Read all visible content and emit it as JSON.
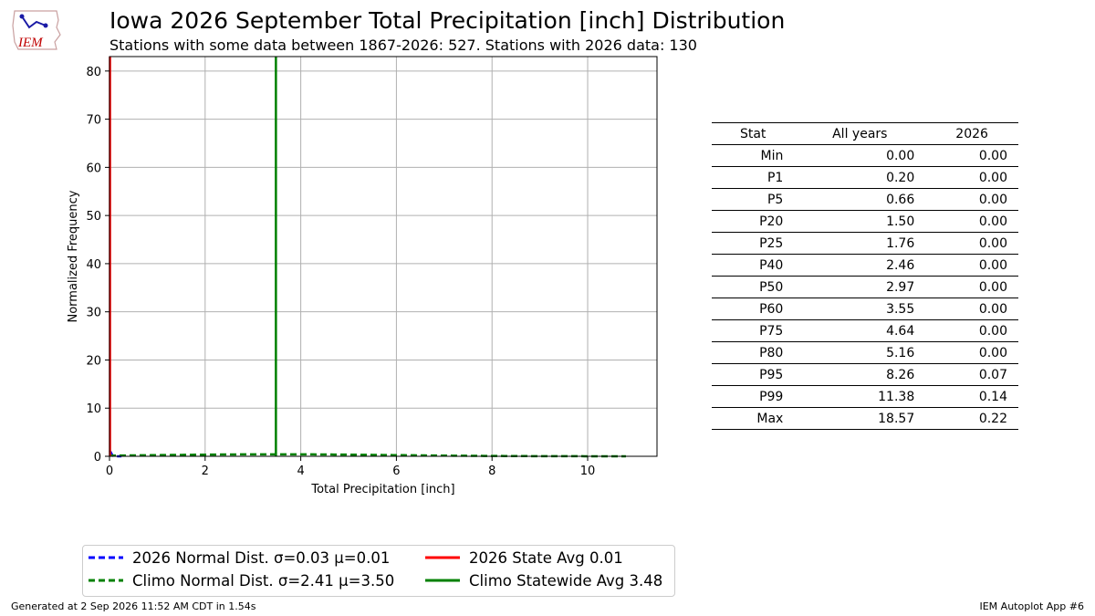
{
  "header": {
    "logo_text": "IEM",
    "title": "Iowa 2026 September Total Precipitation [inch] Distribution",
    "subtitle": "Stations with some data between 1867-2026: 527. Stations with 2026 data: 130"
  },
  "chart_data": {
    "type": "line",
    "xlabel": "Total Precipitation [inch]",
    "ylabel": "Normalized Frequency",
    "xlim": [
      0,
      11.45
    ],
    "ylim": [
      0,
      83
    ],
    "xticks": [
      0,
      2,
      4,
      6,
      8,
      10
    ],
    "yticks": [
      0,
      10,
      20,
      30,
      40,
      50,
      60,
      70,
      80
    ],
    "grid": true,
    "legend_position": "bottom",
    "series": [
      {
        "name": "2026 Normal Dist. σ=0.03 μ=0.01",
        "kind": "normal-pdf",
        "sigma": 0.03,
        "mu": 0.01,
        "scale": 0.075,
        "x_start": 0.0,
        "x_end": 0.25,
        "color": "#0000ff",
        "style": "dashed"
      },
      {
        "name": "Climo Normal Dist. σ=2.41 μ=3.50",
        "kind": "normal-pdf",
        "sigma": 2.41,
        "mu": 3.5,
        "scale": 2.5,
        "x_start": 0.0,
        "x_end": 10.8,
        "color": "#008000",
        "style": "dashed"
      },
      {
        "name": "2026 State Avg 0.01",
        "kind": "vline",
        "x": 0.01,
        "color": "#ff0000",
        "style": "solid"
      },
      {
        "name": "Climo Statewide Avg 3.48",
        "kind": "vline",
        "x": 3.48,
        "color": "#008000",
        "style": "solid"
      }
    ]
  },
  "stats_table": {
    "headers": [
      "Stat",
      "All years",
      "2026"
    ],
    "rows": [
      [
        "Min",
        "0.00",
        "0.00"
      ],
      [
        "P1",
        "0.20",
        "0.00"
      ],
      [
        "P5",
        "0.66",
        "0.00"
      ],
      [
        "P20",
        "1.50",
        "0.00"
      ],
      [
        "P25",
        "1.76",
        "0.00"
      ],
      [
        "P40",
        "2.46",
        "0.00"
      ],
      [
        "P50",
        "2.97",
        "0.00"
      ],
      [
        "P60",
        "3.55",
        "0.00"
      ],
      [
        "P75",
        "4.64",
        "0.00"
      ],
      [
        "P80",
        "5.16",
        "0.00"
      ],
      [
        "P95",
        "8.26",
        "0.07"
      ],
      [
        "P99",
        "11.38",
        "0.14"
      ],
      [
        "Max",
        "18.57",
        "0.22"
      ]
    ]
  },
  "footer": {
    "left": "Generated at 2 Sep 2026 11:52 AM CDT in 1.54s",
    "right": "IEM Autoplot App #6"
  }
}
